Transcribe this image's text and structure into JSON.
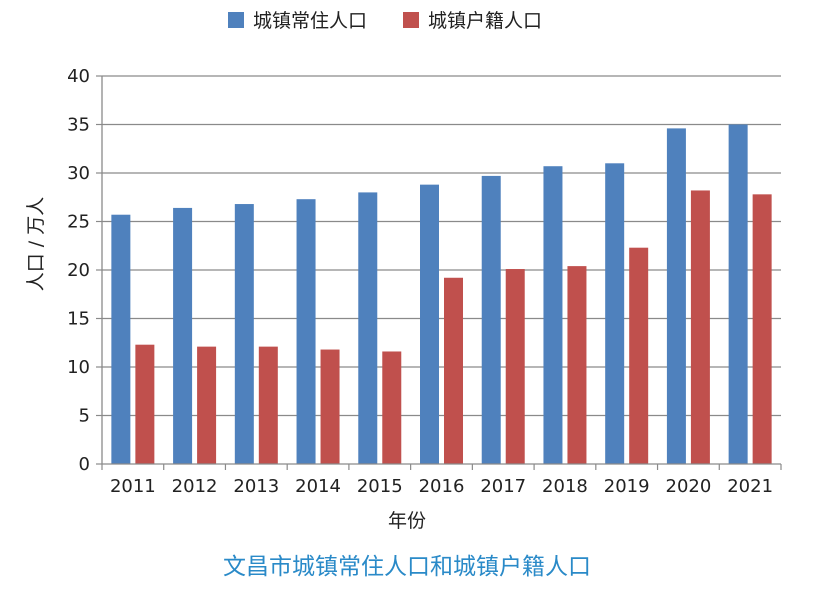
{
  "chart_data": {
    "type": "bar",
    "title": "文昌市城镇常住人口和城镇户籍人口",
    "xlabel": "年份",
    "ylabel": "人口 / 万人",
    "ylim": [
      0,
      40
    ],
    "yticks": [
      0,
      5,
      10,
      15,
      20,
      25,
      30,
      35,
      40
    ],
    "grid": true,
    "legend_position": "top-center",
    "categories": [
      "2011",
      "2012",
      "2013",
      "2014",
      "2015",
      "2016",
      "2017",
      "2018",
      "2019",
      "2020",
      "2021"
    ],
    "series": [
      {
        "name": "城镇常住人口",
        "color": "#4f81bd",
        "values": [
          25.7,
          26.4,
          26.8,
          27.3,
          28.0,
          28.8,
          29.7,
          30.7,
          31.0,
          34.6,
          35.0
        ]
      },
      {
        "name": "城镇户籍人口",
        "color": "#c0504d",
        "values": [
          12.3,
          12.1,
          12.1,
          11.8,
          11.6,
          19.2,
          20.1,
          20.4,
          22.3,
          28.2,
          27.8
        ]
      }
    ]
  }
}
